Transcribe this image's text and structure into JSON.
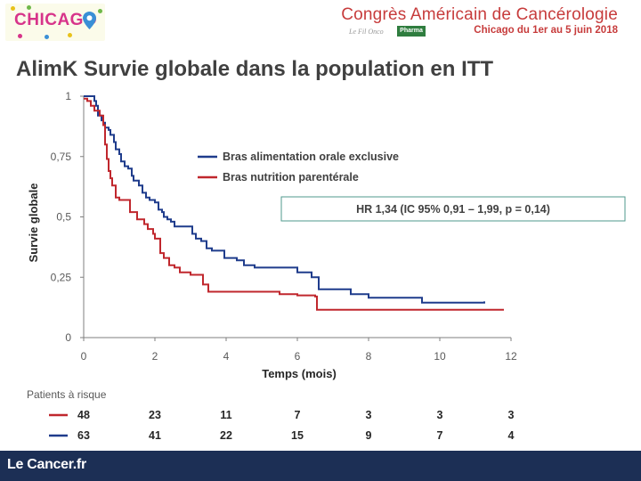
{
  "header": {
    "logo_text": "CHICAGO",
    "congress_title": "Congrès Américain de Cancérologie",
    "congress_dates": "Chicago du 1er au 5 juin 2018",
    "fil_rouge": "Le Fil Onco",
    "pharma_badge": "Pharma"
  },
  "slide": {
    "title": "AlimK Survie globale dans la population en ITT"
  },
  "footer": {
    "brand": "Le Cancer.fr"
  },
  "colors": {
    "blue_series": "#1f3c8c",
    "red_series": "#c0272d",
    "axis": "#7f7f7f",
    "hr_box_border": "#4f9a8c",
    "footer_bg": "#1c2f55"
  },
  "chart_data": {
    "type": "line",
    "subtype": "kaplan-meier",
    "xlabel": "Temps (mois)",
    "ylabel": "Survie globale",
    "xlim": [
      0,
      12
    ],
    "ylim": [
      0,
      1
    ],
    "x_ticks": [
      "0",
      "2",
      "4",
      "6",
      "8",
      "10",
      "12"
    ],
    "y_ticks": [
      "0",
      "0,25",
      "0,5",
      "0,75",
      "1"
    ],
    "annotation": "HR 1,34 (IC 95% 0,91 – 1,99, p = 0,14)",
    "series": [
      {
        "name": "Bras alimentation orale exclusive",
        "color": "#1f3c8c",
        "x": [
          0,
          0.25,
          0.3,
          0.35,
          0.4,
          0.5,
          0.55,
          0.6,
          0.7,
          0.75,
          0.85,
          0.9,
          1.0,
          1.05,
          1.15,
          1.25,
          1.35,
          1.4,
          1.55,
          1.65,
          1.7,
          1.75,
          1.85,
          2.0,
          2.1,
          2.2,
          2.25,
          2.35,
          2.45,
          2.55,
          2.6,
          3.05,
          3.15,
          3.3,
          3.45,
          3.6,
          3.95,
          4.3,
          4.5,
          4.8,
          5.0,
          5.5,
          6.0,
          6.4,
          6.6,
          7.0,
          7.5,
          8.0,
          9.0,
          9.5,
          10.0,
          11.25
        ],
        "y": [
          1.0,
          1.0,
          0.98,
          0.96,
          0.92,
          0.9,
          0.89,
          0.87,
          0.86,
          0.84,
          0.81,
          0.78,
          0.76,
          0.73,
          0.71,
          0.7,
          0.67,
          0.65,
          0.63,
          0.6,
          0.6,
          0.58,
          0.57,
          0.56,
          0.53,
          0.52,
          0.5,
          0.49,
          0.48,
          0.46,
          0.46,
          0.43,
          0.41,
          0.4,
          0.37,
          0.36,
          0.33,
          0.32,
          0.3,
          0.29,
          0.29,
          0.29,
          0.27,
          0.25,
          0.2,
          0.2,
          0.18,
          0.165,
          0.165,
          0.145,
          0.145,
          0.15
        ]
      },
      {
        "name": "Bras nutrition parentérale",
        "color": "#c0272d",
        "x": [
          0,
          0.1,
          0.2,
          0.3,
          0.45,
          0.55,
          0.6,
          0.65,
          0.7,
          0.75,
          0.8,
          0.9,
          1.0,
          1.3,
          1.5,
          1.7,
          1.8,
          1.95,
          2.0,
          2.15,
          2.25,
          2.4,
          2.55,
          2.7,
          3.0,
          3.35,
          3.5,
          4.0,
          5.0,
          5.5,
          6.0,
          6.5,
          6.55,
          11.8
        ],
        "y": [
          0.99,
          0.98,
          0.96,
          0.94,
          0.92,
          0.88,
          0.8,
          0.74,
          0.69,
          0.66,
          0.63,
          0.58,
          0.57,
          0.52,
          0.49,
          0.47,
          0.45,
          0.43,
          0.41,
          0.35,
          0.33,
          0.3,
          0.29,
          0.27,
          0.26,
          0.22,
          0.19,
          0.19,
          0.19,
          0.18,
          0.175,
          0.17,
          0.115,
          0.115
        ]
      }
    ],
    "at_risk": {
      "title": "Patients à risque",
      "rows": [
        {
          "color": "#c0272d",
          "values": [
            "48",
            "23",
            "11",
            "7",
            "3",
            "3",
            "3"
          ]
        },
        {
          "color": "#1f3c8c",
          "values": [
            "63",
            "41",
            "22",
            "15",
            "9",
            "7",
            "4"
          ]
        }
      ]
    }
  }
}
